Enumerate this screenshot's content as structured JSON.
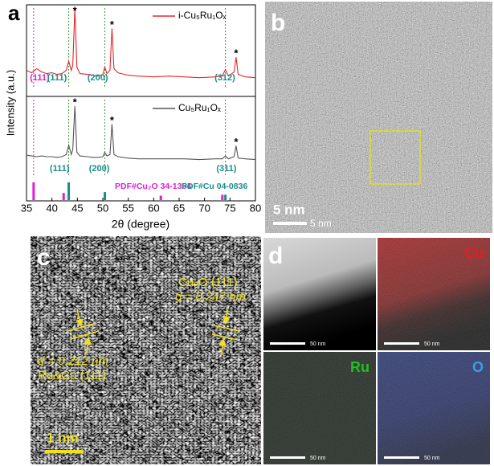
{
  "chart_data": {
    "type": "line",
    "panel_label": "a",
    "x_label": "2θ (degree)",
    "y_label": "Intensity (a.u.)",
    "x": [
      35,
      36,
      37,
      38,
      39,
      40,
      41,
      42,
      42.8,
      43.3,
      43.8,
      44.1,
      44.5,
      44.9,
      45.5,
      47,
      48,
      49,
      50,
      50.4,
      50.8,
      51.4,
      51.8,
      52.2,
      53,
      55,
      57,
      60,
      63,
      66,
      69,
      72,
      73.5,
      74.1,
      74.7,
      75.8,
      76.2,
      76.6,
      78,
      80
    ],
    "xlim": [
      35,
      80
    ],
    "xticks": [
      35,
      40,
      45,
      50,
      55,
      60,
      65,
      70,
      75,
      80
    ],
    "ylim": [
      0,
      100
    ],
    "series": [
      {
        "name": "i-Cu₅Ru₁Oₓ",
        "color": "#e8262a",
        "values": [
          24,
          21,
          26,
          22,
          20,
          21,
          19,
          20,
          24,
          35,
          24,
          30,
          100,
          28,
          20,
          19,
          18,
          17,
          19,
          28,
          20,
          24,
          75,
          26,
          21,
          18,
          17,
          16,
          17,
          16,
          15,
          16,
          17,
          25,
          17,
          22,
          40,
          19,
          16,
          15
        ]
      },
      {
        "name": "Cu₅Ru₁Oₓ",
        "color": "#555555",
        "values": [
          32,
          31,
          30,
          31,
          30,
          30,
          29,
          30,
          33,
          46,
          33,
          40,
          100,
          36,
          31,
          30,
          29,
          29,
          30,
          36,
          31,
          33,
          75,
          33,
          30,
          28,
          27,
          27,
          27,
          27,
          26,
          27,
          27,
          31,
          27,
          30,
          45,
          28,
          27,
          26
        ]
      }
    ],
    "references": [
      {
        "name": "PDF#Cu₂O 34-1354",
        "color": "#e020d0",
        "x": [
          36.4,
          42.3,
          61.4,
          73.5
        ],
        "values": [
          100,
          40,
          25,
          30
        ]
      },
      {
        "name": "PDF#Cu 04-0836",
        "color": "#1a8c8c",
        "x": [
          43.3,
          50.4,
          74.1
        ],
        "values": [
          100,
          45,
          30
        ]
      }
    ],
    "guides": [
      {
        "x": 36.4,
        "color": "#e020d0"
      },
      {
        "x": 43.3,
        "color": "#3a9a3a"
      },
      {
        "x": 50.4,
        "color": "#3a9a3a"
      },
      {
        "x": 74.1,
        "color": "#3a9a3a"
      }
    ],
    "peak_labels": [
      {
        "text": "(111)",
        "x": 37.6,
        "series": 0,
        "color": "#e020d0"
      },
      {
        "text": "(111)",
        "x": 41.0,
        "series": 0,
        "color": "#1a8c8c"
      },
      {
        "text": "(200)",
        "x": 49.0,
        "series": 0,
        "color": "#1a8c8c"
      },
      {
        "text": "(312)",
        "x": 74.0,
        "series": 0,
        "color": "#1a8c8c"
      },
      {
        "text": "(111)",
        "x": 41.5,
        "series": 1,
        "color": "#1a8c8c"
      },
      {
        "text": "(200)",
        "x": 49.3,
        "series": 1,
        "color": "#1a8c8c"
      },
      {
        "text": "(311)",
        "x": 74.3,
        "series": 1,
        "color": "#1a8c8c"
      }
    ],
    "peak_marker": "*",
    "peak_marker_x": [
      44.5,
      51.8,
      76.2
    ]
  },
  "panels": {
    "b": {
      "label": "b",
      "scale": "5 nm",
      "inset_scale": "5 nm"
    },
    "c": {
      "label": "c",
      "scale": "1 nm",
      "phase_1": "Cu₂O (111)",
      "spacing_1": "d = 0.247 nm",
      "spacing_2": "d = 0.212 nm",
      "phase_2": "Ru&Cu (111)"
    },
    "d": {
      "label": "d",
      "haadf_scale": "50 nm",
      "maps": [
        {
          "element": "Cu",
          "color": "#e02020",
          "scale": "50 nm"
        },
        {
          "element": "Ru",
          "color": "#20c020",
          "scale": "50 nm"
        },
        {
          "element": "O",
          "color": "#3aa0e0",
          "scale": "50 nm"
        }
      ]
    }
  }
}
